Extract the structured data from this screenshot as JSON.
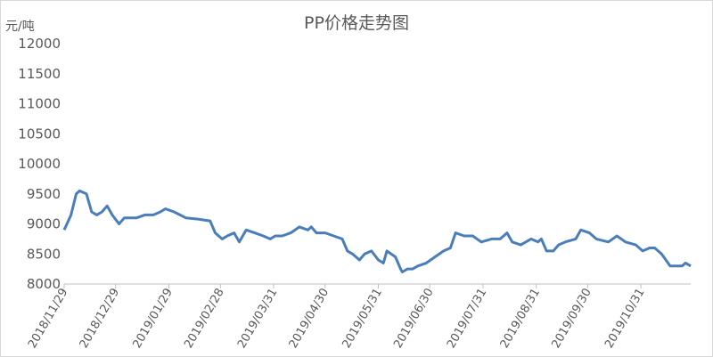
{
  "chart_data": {
    "type": "line",
    "title": "PP价格走势图",
    "y_label": "元/吨",
    "x": [
      "2018/11/29",
      "2018/12/03",
      "2018/12/06",
      "2018/12/08",
      "2018/12/12",
      "2018/12/15",
      "2018/12/18",
      "2018/12/21",
      "2018/12/24",
      "2018/12/27",
      "2018/12/31",
      "2019/01/03",
      "2019/01/10",
      "2019/01/15",
      "2019/01/20",
      "2019/01/24",
      "2019/01/27",
      "2019/02/01",
      "2019/02/08",
      "2019/02/15",
      "2019/02/22",
      "2019/02/25",
      "2019/03/01",
      "2019/03/04",
      "2019/03/08",
      "2019/03/11",
      "2019/03/15",
      "2019/03/20",
      "2019/03/25",
      "2019/03/29",
      "2019/04/01",
      "2019/04/05",
      "2019/04/10",
      "2019/04/15",
      "2019/04/20",
      "2019/04/22",
      "2019/04/25",
      "2019/04/30",
      "2019/05/05",
      "2019/05/10",
      "2019/05/13",
      "2019/05/16",
      "2019/05/20",
      "2019/05/23",
      "2019/05/27",
      "2019/05/31",
      "2019/06/03",
      "2019/06/05",
      "2019/06/10",
      "2019/06/13",
      "2019/06/14",
      "2019/06/17",
      "2019/06/20",
      "2019/06/23",
      "2019/06/28",
      "2019/07/03",
      "2019/07/08",
      "2019/07/12",
      "2019/07/15",
      "2019/07/20",
      "2019/07/25",
      "2019/07/30",
      "2019/08/05",
      "2019/08/10",
      "2019/08/14",
      "2019/08/17",
      "2019/08/22",
      "2019/08/28",
      "2019/09/01",
      "2019/09/03",
      "2019/09/06",
      "2019/09/10",
      "2019/09/13",
      "2019/09/17",
      "2019/09/23",
      "2019/09/26",
      "2019/10/01",
      "2019/10/05",
      "2019/10/12",
      "2019/10/17",
      "2019/10/22",
      "2019/10/28",
      "2019/11/01",
      "2019/11/05",
      "2019/11/08",
      "2019/11/12",
      "2019/11/17",
      "2019/11/24",
      "2019/11/26",
      "2019/11/29"
    ],
    "values": [
      8900,
      9150,
      9500,
      9550,
      9500,
      9200,
      9150,
      9200,
      9300,
      9150,
      9000,
      9100,
      9100,
      9150,
      9150,
      9200,
      9250,
      9200,
      9100,
      9080,
      9050,
      8850,
      8750,
      8800,
      8850,
      8700,
      8900,
      8850,
      8800,
      8750,
      8800,
      8800,
      8850,
      8950,
      8900,
      8950,
      8850,
      8850,
      8800,
      8750,
      8550,
      8500,
      8400,
      8500,
      8550,
      8400,
      8350,
      8550,
      8450,
      8250,
      8200,
      8250,
      8250,
      8300,
      8350,
      8450,
      8550,
      8600,
      8850,
      8800,
      8800,
      8700,
      8750,
      8750,
      8850,
      8700,
      8650,
      8750,
      8700,
      8750,
      8550,
      8550,
      8650,
      8700,
      8750,
      8900,
      8850,
      8750,
      8700,
      8800,
      8700,
      8650,
      8550,
      8600,
      8600,
      8500,
      8300,
      8300,
      8350,
      8300
    ],
    "color": "#4a7ebb",
    "xlim": [
      "2018/11/29",
      "2019/11/29"
    ],
    "xticks": [
      "2018/11/29",
      "2018/12/29",
      "2019/01/29",
      "2019/02/28",
      "2019/03/31",
      "2019/04/30",
      "2019/05/31",
      "2019/06/30",
      "2019/07/31",
      "2019/08/31",
      "2019/09/30",
      "2019/10/31"
    ],
    "ylim": [
      8000,
      12000
    ],
    "yticks": [
      8000,
      8500,
      9000,
      9500,
      10000,
      10500,
      11000,
      11500,
      12000
    ]
  }
}
